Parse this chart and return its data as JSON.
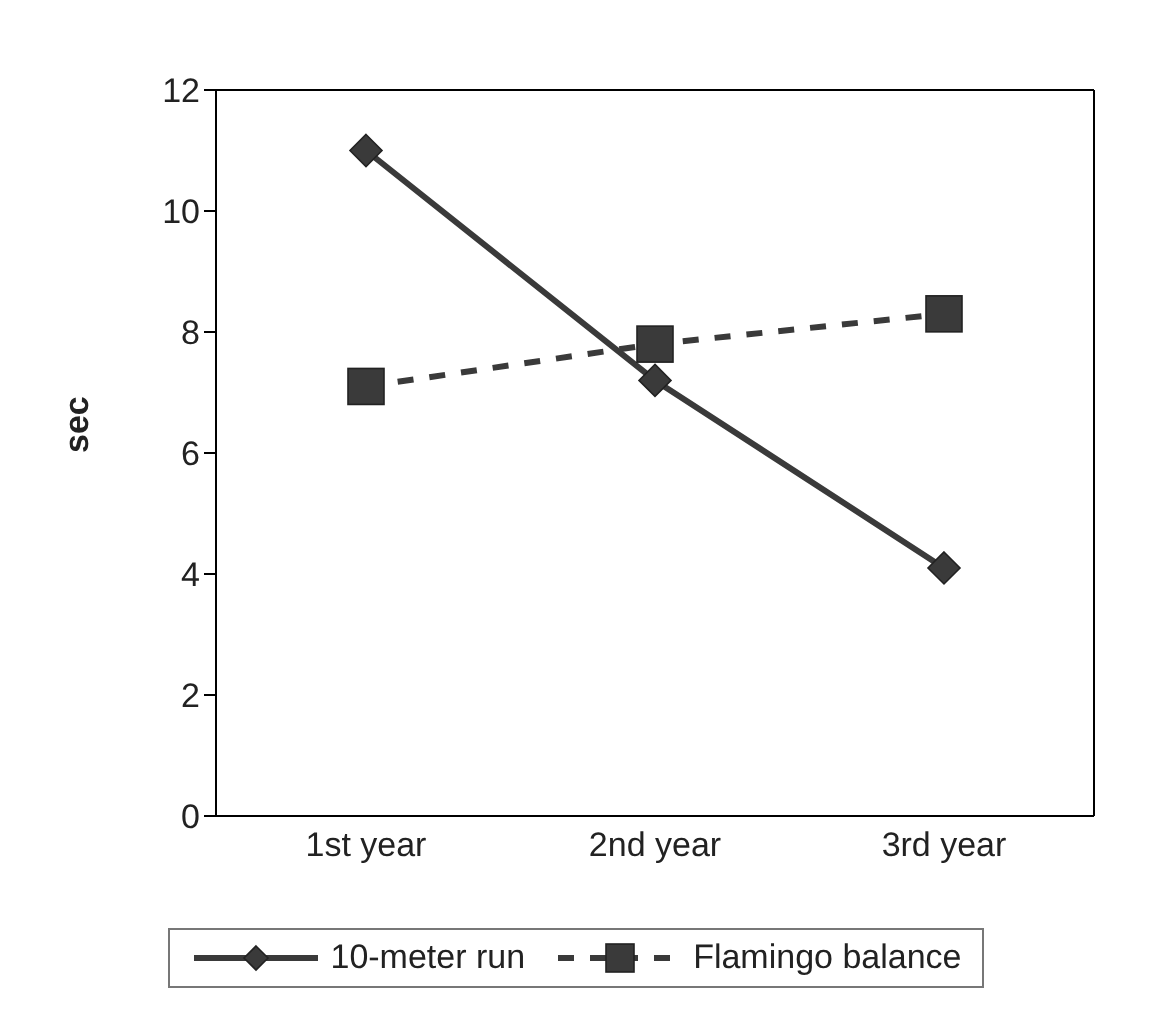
{
  "chart_data": {
    "type": "line",
    "ylabel": "sec",
    "categories": [
      "1st year",
      "2nd year",
      "3rd year"
    ],
    "series": [
      {
        "name": "10-meter run",
        "color": "#3a3a3a",
        "values": [
          11.0,
          7.2,
          4.1
        ],
        "marker": "diamond",
        "line_style": "solid"
      },
      {
        "name": "Flamingo balance",
        "color": "#3a3a3a",
        "values": [
          7.1,
          7.8,
          8.3
        ],
        "marker": "square",
        "line_style": "dashed"
      }
    ],
    "ylim": [
      0,
      12
    ],
    "yticks": [
      0,
      2,
      4,
      6,
      8,
      10,
      12
    ],
    "grid": false,
    "legend": "bottom"
  }
}
